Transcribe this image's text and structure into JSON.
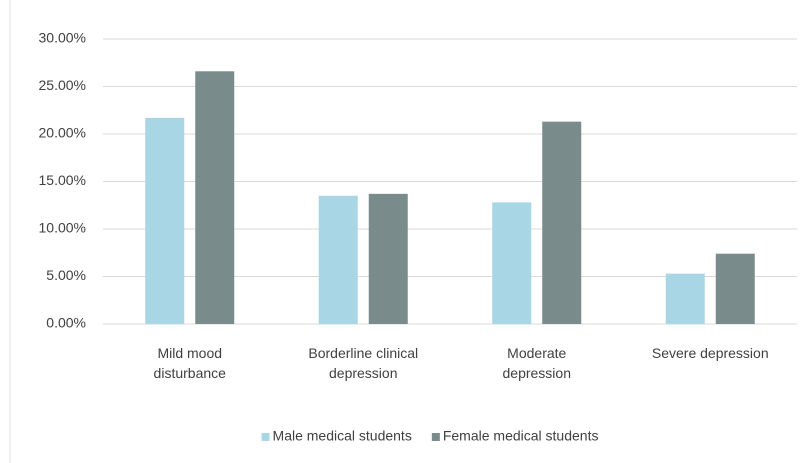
{
  "chart_data": {
    "type": "bar",
    "categories": [
      "Mild mood disturbance",
      "Borderline clinical depression",
      "Moderate depression",
      "Severe depression"
    ],
    "series": [
      {
        "name": "Male medical students",
        "color": "#a9d6e5",
        "values": [
          21.7,
          13.5,
          12.8,
          5.3
        ]
      },
      {
        "name": "Female medical students",
        "color": "#7a8b8c",
        "values": [
          26.6,
          13.7,
          21.3,
          7.4
        ]
      }
    ],
    "ylim": [
      0,
      30
    ],
    "yticks": [
      {
        "value": 0,
        "label": "0.00%"
      },
      {
        "value": 5,
        "label": "5.00%"
      },
      {
        "value": 10,
        "label": "10.00%"
      },
      {
        "value": 15,
        "label": "15.00%"
      },
      {
        "value": 20,
        "label": "20.00%"
      },
      {
        "value": 25,
        "label": "25.00%"
      },
      {
        "value": 30,
        "label": "30.00%"
      }
    ],
    "grid": true,
    "legend": "bottom"
  }
}
